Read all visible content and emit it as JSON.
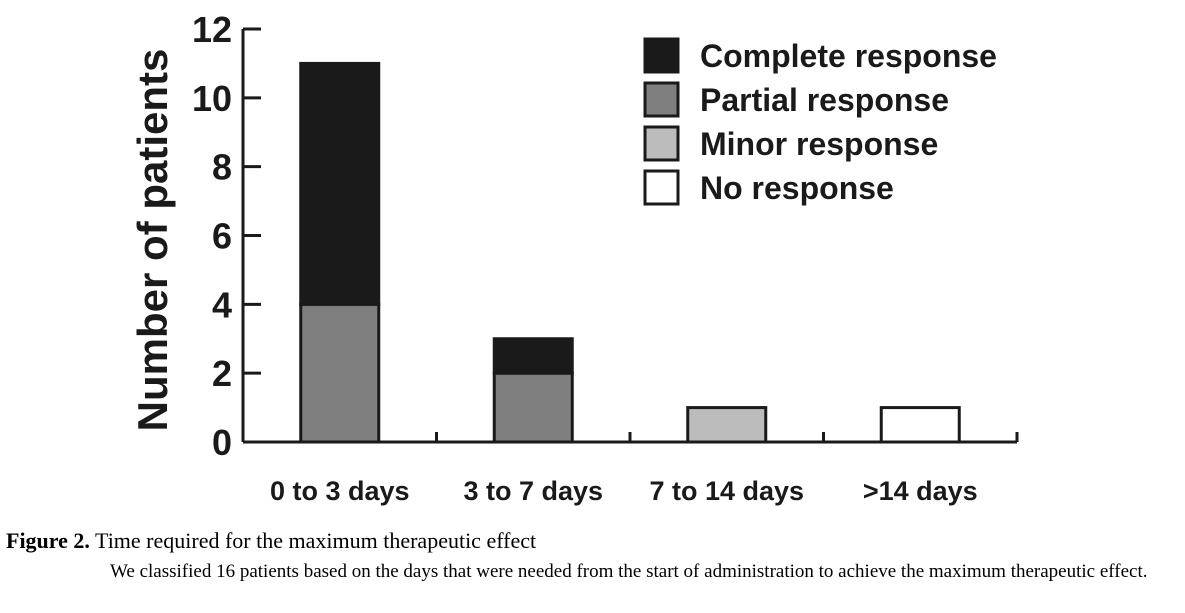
{
  "chart_data": {
    "type": "bar",
    "stacked": true,
    "categories": [
      "0 to 3 days",
      "3 to 7 days",
      "7 to 14 days",
      ">14 days"
    ],
    "series": [
      {
        "name": "Complete response",
        "color": "#1a1a1a",
        "values": [
          7,
          1,
          0,
          0
        ]
      },
      {
        "name": "Partial response",
        "color": "#7f7f7f",
        "values": [
          4,
          2,
          0,
          0
        ]
      },
      {
        "name": "Minor response",
        "color": "#bcbcbc",
        "values": [
          0,
          0,
          1,
          0
        ]
      },
      {
        "name": "No response",
        "color": "#ffffff",
        "values": [
          0,
          0,
          0,
          1
        ]
      }
    ],
    "ylabel": "Number of patients",
    "xlabel": "",
    "ylim": [
      0,
      12
    ],
    "yticks": [
      0,
      2,
      4,
      6,
      8,
      10,
      12
    ],
    "grid": false,
    "legend_position": "top-right"
  },
  "caption": {
    "label": "Figure 2.",
    "title": "Time required for the maximum therapeutic effect",
    "body": "We classified 16 patients based on the days that were needed from the start of administration to achieve the maximum therapeutic effect."
  }
}
